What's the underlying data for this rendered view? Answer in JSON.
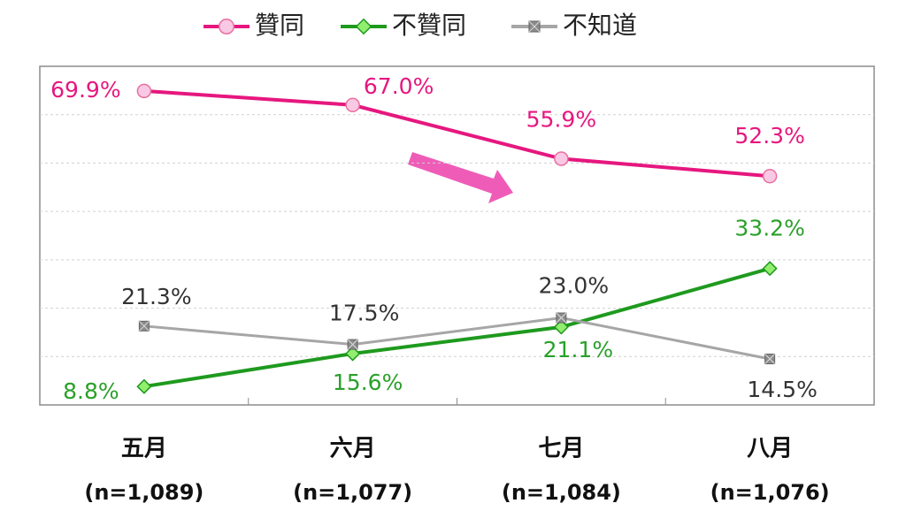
{
  "chart_data": {
    "type": "line",
    "categories": [
      "五月",
      "六月",
      "七月",
      "八月"
    ],
    "sample_sizes": [
      "(n=1,089)",
      "(n=1,077)",
      "(n=1,084)",
      "(n=1,076)"
    ],
    "series": [
      {
        "name": "贊同",
        "color": "#e6177f",
        "marker": "circle",
        "values": [
          69.9,
          67.0,
          55.9,
          52.3
        ],
        "value_labels": [
          "69.9%",
          "67.0%",
          "55.9%",
          "52.3%"
        ]
      },
      {
        "name": "不贊同",
        "color": "#1e9a1e",
        "marker": "diamond",
        "values": [
          8.8,
          15.6,
          21.1,
          33.2
        ],
        "value_labels": [
          "8.8%",
          "15.6%",
          "21.1%",
          "33.2%"
        ]
      },
      {
        "name": "不知道",
        "color": "#a6a6a6",
        "marker": "square",
        "values": [
          21.3,
          17.5,
          23.0,
          14.5
        ],
        "value_labels": [
          "21.3%",
          "17.5%",
          "23.0%",
          "14.5%"
        ]
      }
    ],
    "ylim": [
      5,
      75
    ],
    "gridlines": [
      15,
      25,
      35,
      45,
      55,
      65
    ],
    "grid": true
  }
}
